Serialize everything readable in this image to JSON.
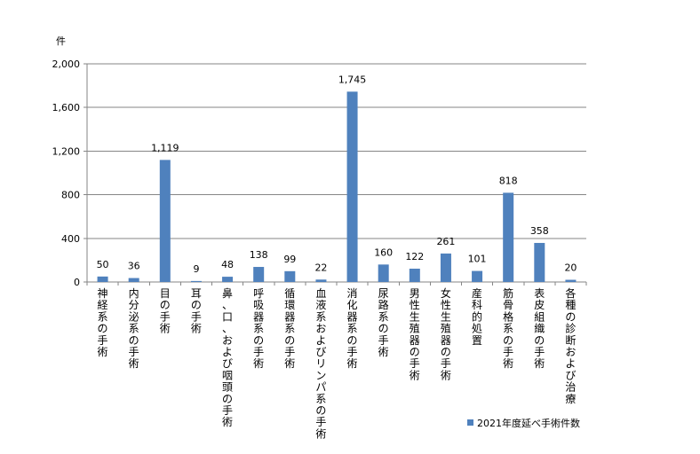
{
  "chart_data": {
    "type": "bar",
    "unit_label": "件",
    "categories": [
      "神経系の手術",
      "内分泌系の手術",
      "目の手術",
      "耳の手術",
      "鼻、口、および咽頭の手術",
      "呼吸器系の手術",
      "循環器系の手術",
      "血液系およびリンパ系の手術",
      "消化器系の手術",
      "尿路系の手術",
      "男性生殖器の手術",
      "女性生殖器の手術",
      "産科的処置",
      "筋骨格系の手術",
      "表皮組織の手術",
      "各種の診断および治療"
    ],
    "series": [
      {
        "name": "2021年度延べ手術件数",
        "values": [
          50,
          36,
          1119,
          9,
          48,
          138,
          99,
          22,
          1745,
          160,
          122,
          261,
          101,
          818,
          358,
          20
        ],
        "labels": [
          "50",
          "36",
          "1,119",
          "9",
          "48",
          "138",
          "99",
          "22",
          "1,745",
          "160",
          "122",
          "261",
          "101",
          "818",
          "358",
          "20"
        ]
      }
    ],
    "yticks": [
      "0",
      "400",
      "800",
      "1,200",
      "1,600",
      "2,000"
    ],
    "ylim": [
      0,
      2000
    ],
    "grid": true,
    "legend_position": "bottom-right",
    "colors": {
      "bar": "#4f81bd",
      "grid": "#868686",
      "axis": "#868686"
    }
  }
}
